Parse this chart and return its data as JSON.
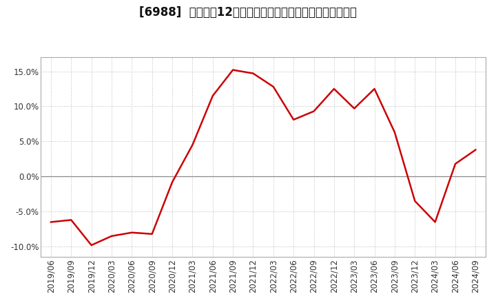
{
  "title": "[6988]  売上高の12か月移動合計の対前年同期増減率の推移",
  "x_labels": [
    "2019/06",
    "2019/09",
    "2019/12",
    "2020/03",
    "2020/06",
    "2020/09",
    "2020/12",
    "2021/03",
    "2021/06",
    "2021/09",
    "2021/12",
    "2022/03",
    "2022/06",
    "2022/09",
    "2022/12",
    "2023/03",
    "2023/06",
    "2023/09",
    "2023/12",
    "2024/03",
    "2024/06",
    "2024/09"
  ],
  "y_values": [
    -6.5,
    -6.2,
    -9.8,
    -8.5,
    -8.0,
    -8.2,
    -0.8,
    4.5,
    11.5,
    15.2,
    14.7,
    12.8,
    8.1,
    9.3,
    12.5,
    9.7,
    12.5,
    6.3,
    -3.5,
    -6.5,
    1.8,
    3.8
  ],
  "line_color": "#cc0000",
  "bg_color": "#ffffff",
  "plot_bg_color": "#ffffff",
  "grid_color": "#bbbbbb",
  "zero_line_color": "#888888",
  "border_color": "#aaaaaa",
  "ylim": [
    -11.5,
    17.0
  ],
  "yticks": [
    -10.0,
    -5.0,
    0.0,
    5.0,
    10.0,
    15.0
  ],
  "title_fontsize": 12,
  "tick_fontsize": 8.5
}
